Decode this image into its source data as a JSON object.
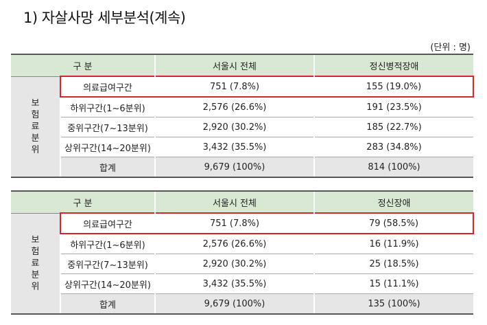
{
  "title": "1) 자살사망 세부분석(계속)",
  "unit": "(단위 : 명)",
  "tables": [
    {
      "headers": [
        "구 분",
        "서울시 전체",
        "정신병적장애"
      ],
      "side_label": [
        "보",
        "험",
        "료",
        "분",
        "위"
      ],
      "rows": [
        {
          "category": "의료급여구간",
          "total": "751 (7.8%)",
          "value": "155 (19.0%)"
        },
        {
          "category": "하위구간(1~6분위)",
          "total": "2,576 (26.6%)",
          "value": "191 (23.5%)"
        },
        {
          "category": "중위구간(7~13분위)",
          "total": "2,920 (30.2%)",
          "value": "185 (22.7%)"
        },
        {
          "category": "상위구간(14~20분위)",
          "total": "3,432 (35.5%)",
          "value": "283 (34.8%)"
        },
        {
          "category": "합계",
          "total": "9,679 (100%)",
          "value": "814 (100%)"
        }
      ]
    },
    {
      "headers": [
        "구 분",
        "서울시 전체",
        "정신장애"
      ],
      "side_label": [
        "보",
        "험",
        "료",
        "분",
        "위"
      ],
      "rows": [
        {
          "category": "의료급여구간",
          "total": "751 (7.8%)",
          "value": "79 (58.5%)"
        },
        {
          "category": "하위구간(1~6분위)",
          "total": "2,576 (26.6%)",
          "value": "16 (11.9%)"
        },
        {
          "category": "중위구간(7~13분위)",
          "total": "2,920 (30.2%)",
          "value": "25 (18.5%)"
        },
        {
          "category": "상위구간(14~20분위)",
          "total": "3,432 (35.5%)",
          "value": "15 (11.1%)"
        },
        {
          "category": "합계",
          "total": "9,679 (100%)",
          "value": "135 (100%)"
        }
      ]
    }
  ],
  "colors": {
    "header_bg": "#d9e8d3",
    "side_bg": "#e6e6e6",
    "highlight": "#d9232a"
  }
}
